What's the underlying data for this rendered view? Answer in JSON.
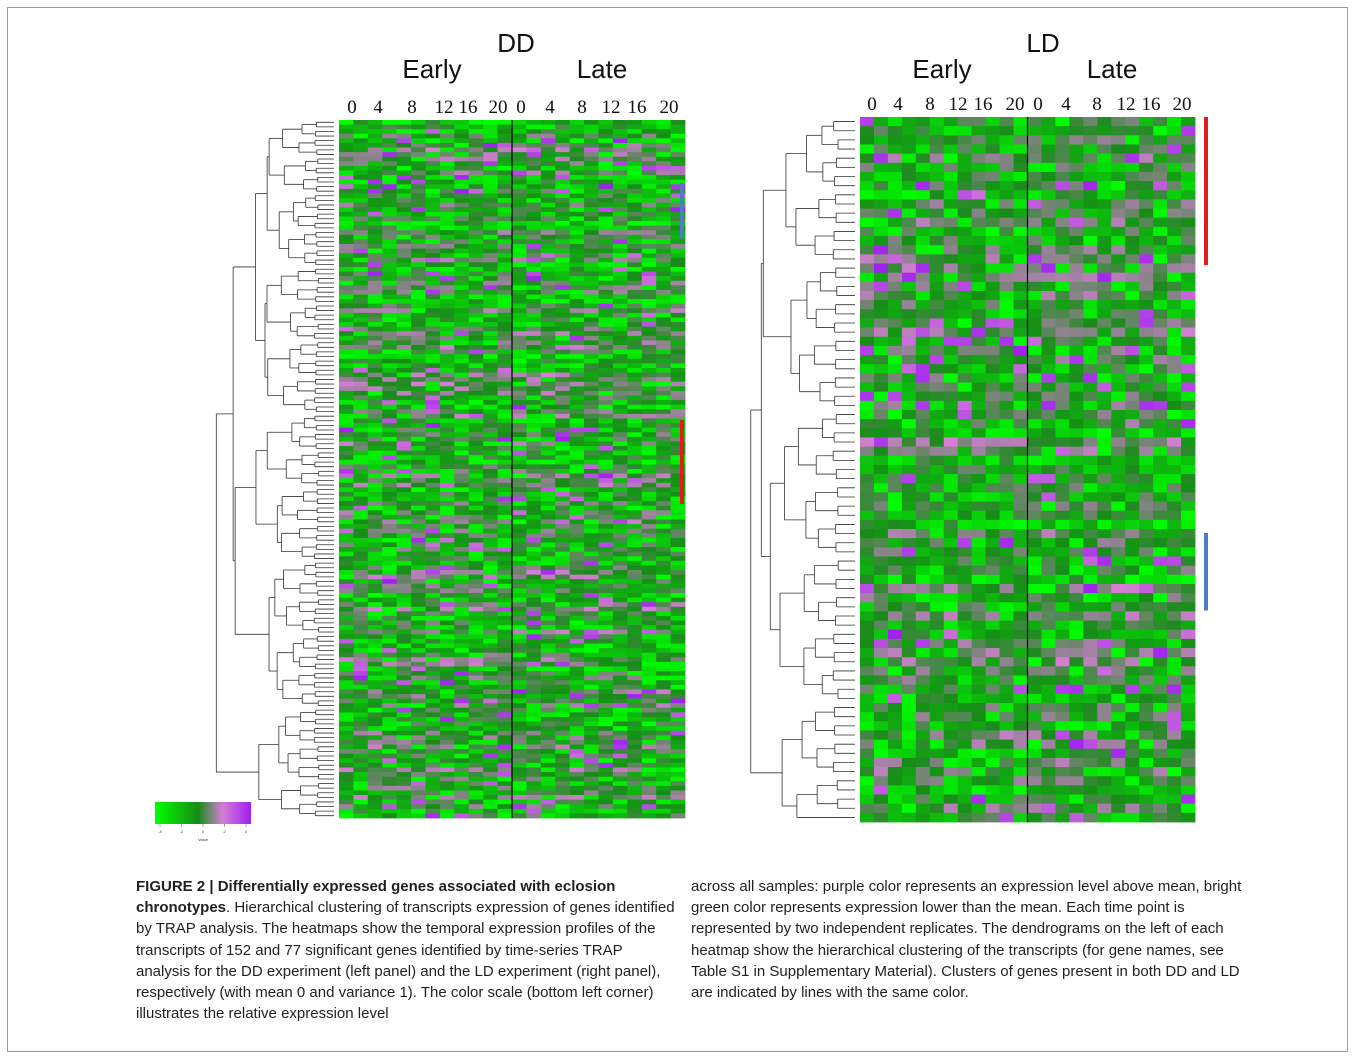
{
  "figure": {
    "panels": [
      {
        "id": "dd",
        "title": "DD",
        "early_label": "Early",
        "late_label": "Late",
        "time_points": [
          "0",
          "4",
          "8",
          "12",
          "16",
          "20"
        ],
        "genes": 152,
        "cluster_bars": [
          {
            "color": "#4a7fc1",
            "rows": [
              0.09,
              0.17
            ]
          },
          {
            "color": "#e21b1b",
            "rows": [
              0.43,
              0.55
            ]
          }
        ]
      },
      {
        "id": "ld",
        "title": "LD",
        "early_label": "Early",
        "late_label": "Late",
        "time_points": [
          "0",
          "4",
          "8",
          "12",
          "16",
          "20"
        ],
        "genes": 77,
        "cluster_bars": [
          {
            "color": "#e21b1b",
            "rows": [
              0.0,
              0.21
            ]
          },
          {
            "color": "#4a7fc1",
            "rows": [
              0.59,
              0.7
            ]
          }
        ]
      }
    ],
    "color_scale": {
      "colors": [
        "#00ff00",
        "#178c17",
        "#d57ed5",
        "#a020f0"
      ],
      "ticks": [
        "-4",
        "-2",
        "0",
        "2",
        "4"
      ],
      "label": "Value"
    }
  },
  "caption": {
    "label": "FIGURE 2 | Differentially expressed genes associated with eclosion chronotypes",
    "text_left": ". Hierarchical clustering of transcripts expression of genes identified by TRAP analysis. The heatmaps show the temporal expression profiles of the transcripts of 152 and 77 significant genes identified by time-series TRAP analysis for the DD experiment (left panel) and the LD experiment (right panel), respectively (with mean 0 and variance 1). The color scale (bottom left corner) illustrates the relative expression level",
    "text_right": "across all samples: purple color represents an expression level above mean, bright green color represents expression lower than the mean. Each time point is represented by two independent replicates. The dendrograms on the left of each heatmap show the hierarchical clustering of the transcripts (for gene names, see Table S1 in Supplementary Material). Clusters of genes present in both DD and LD are indicated by lines with the same color."
  }
}
